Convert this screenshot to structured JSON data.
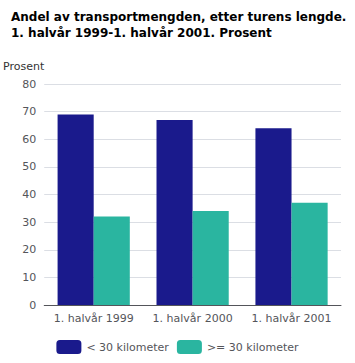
{
  "chart_data": {
    "type": "bar",
    "title": "Andel av transportmengden, etter turens lengde.",
    "subtitle": "1. halvår 1999-1. halvår 2001. Prosent",
    "ylabel": "Prosent",
    "categories": [
      "1. halvår 1999",
      "1. halvår 2000",
      "1. halvår 2001"
    ],
    "series": [
      {
        "name": "< 30 kilometer",
        "color": "#1a1a8c",
        "values": [
          69,
          67,
          64
        ]
      },
      {
        "name": ">= 30 kilometer",
        "color": "#2ab5a0",
        "values": [
          32,
          34,
          37
        ]
      }
    ],
    "ylim": [
      0,
      80
    ],
    "yticks": [
      0,
      10,
      20,
      30,
      40,
      50,
      60,
      70,
      80
    ],
    "grid": true,
    "legend": "bottom"
  }
}
